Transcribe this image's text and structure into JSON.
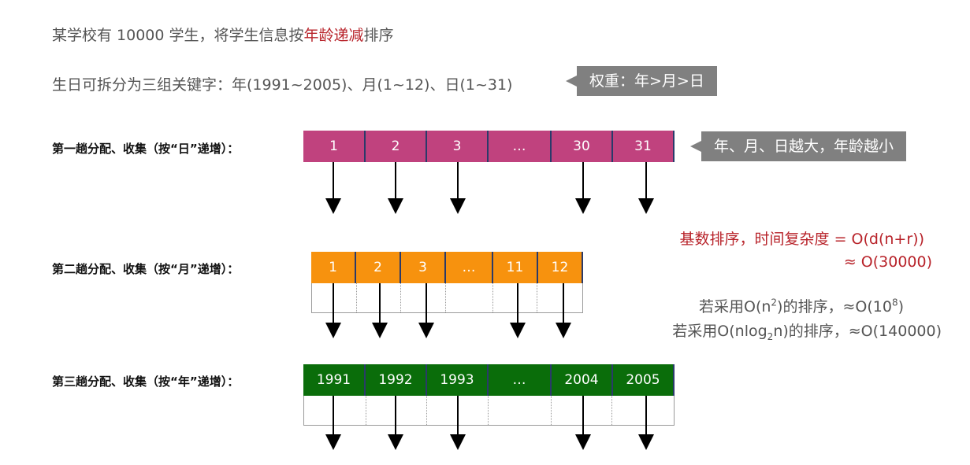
{
  "intro": {
    "line1_prefix": "某学校有 10000 学生，将学生信息按",
    "line1_highlight": "年龄递减",
    "line1_suffix": "排序",
    "line2": "生日可拆分为三组关键字：年(1991~2005)、月(1~12)、日(1~31)"
  },
  "callouts": {
    "weight": "权重：年>月>日",
    "age": "年、月、日越大，年龄越小"
  },
  "passes": [
    {
      "label": "第一趟分配、收集（按“日”递增）：",
      "color": "#c0427e",
      "cells": [
        "1",
        "2",
        "3",
        "…",
        "30",
        "31"
      ]
    },
    {
      "label": "第二趟分配、收集（按“月”递增）：",
      "color": "#f7920e",
      "cells": [
        "1",
        "2",
        "3",
        "…",
        "11",
        "12"
      ]
    },
    {
      "label": "第三趟分配、收集（按“年”递增）：",
      "color": "#0a6d0a",
      "cells": [
        "1991",
        "1992",
        "1993",
        "…",
        "2004",
        "2005"
      ]
    }
  ],
  "complexity": {
    "line1": "基数排序，时间复杂度 = O(d(n+r))",
    "line2": "≈ O(30000)",
    "alt1_a": "若采用O(n",
    "alt1_sup": "2",
    "alt1_b": ")的排序，≈O(10",
    "alt1_sup2": "8",
    "alt1_c": ")",
    "alt2_a": "若采用O(nlog",
    "alt2_sub": "2",
    "alt2_b": "n)的排序，≈O(140000)"
  },
  "colors": {
    "accent_red": "#b8232a",
    "callout_gray": "#808080",
    "divider": "#2a3a6a"
  }
}
